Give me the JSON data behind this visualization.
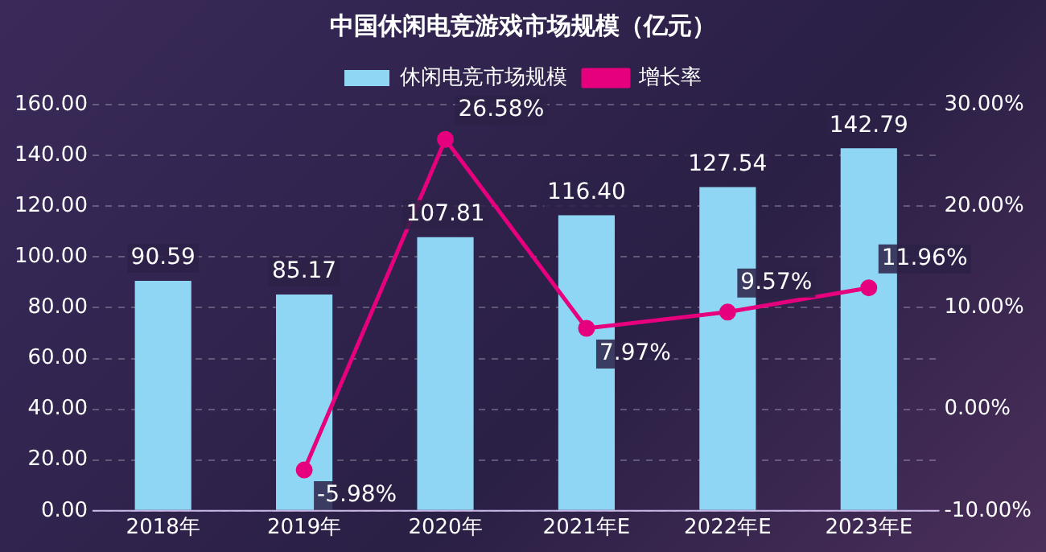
{
  "chart_data": {
    "type": "bar",
    "title": "中国休闲电竞游戏市场规模（亿元）",
    "categories": [
      "2018年",
      "2019年",
      "2020年",
      "2021年E",
      "2022年E",
      "2023年E"
    ],
    "series": [
      {
        "name": "休闲电竞市场规模",
        "color": "#8fd6f4",
        "values": [
          90.59,
          85.17,
          107.81,
          116.4,
          127.54,
          142.79
        ],
        "value_labels": [
          "90.59",
          "85.17",
          "107.81",
          "116.40",
          "127.54",
          "142.79"
        ]
      },
      {
        "name": "增长率",
        "type": "line",
        "axis": "y2",
        "color": "#e6007e",
        "marker": "circle",
        "values": [
          null,
          -5.98,
          26.58,
          7.97,
          9.57,
          11.96
        ],
        "value_labels": [
          null,
          "-5.98%",
          "26.58%",
          "7.97%",
          "9.57%",
          "11.96%"
        ]
      }
    ],
    "ylim": [
      0,
      160
    ],
    "yticks": [
      {
        "value": 0,
        "label": "0.00"
      },
      {
        "value": 20,
        "label": "20.00"
      },
      {
        "value": 40,
        "label": "40.00"
      },
      {
        "value": 60,
        "label": "60.00"
      },
      {
        "value": 80,
        "label": "80.00"
      },
      {
        "value": 100,
        "label": "100.00"
      },
      {
        "value": 120,
        "label": "120.00"
      },
      {
        "value": 140,
        "label": "140.00"
      },
      {
        "value": 160,
        "label": "160.00"
      }
    ],
    "y2lim": [
      -10,
      30
    ],
    "y2ticks": [
      {
        "value": -10,
        "label": "-10.00%"
      },
      {
        "value": 0,
        "label": "0.00%"
      },
      {
        "value": 10,
        "label": "10.00%"
      },
      {
        "value": 20,
        "label": "20.00%"
      },
      {
        "value": 30,
        "label": "30.00%"
      }
    ],
    "grid": "y",
    "legend": "top"
  }
}
